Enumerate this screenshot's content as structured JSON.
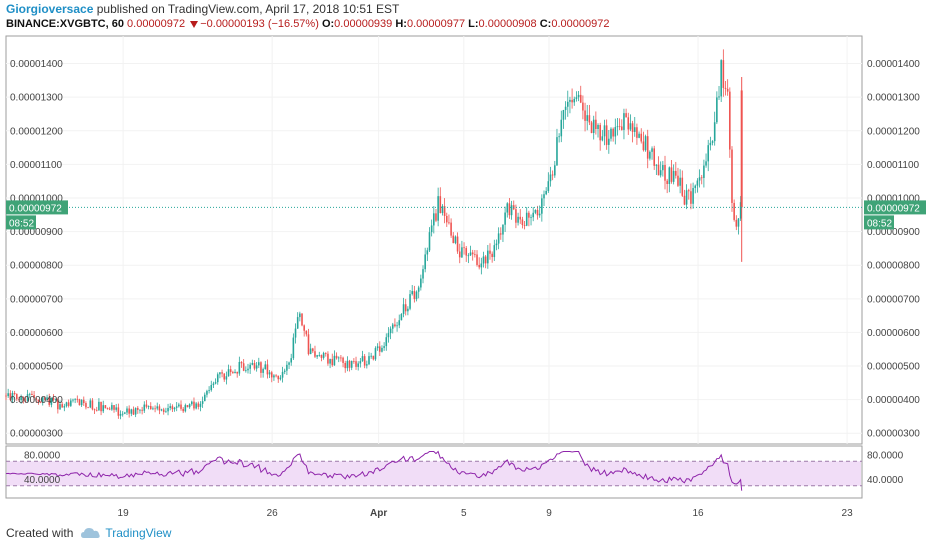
{
  "header": {
    "author": "Giorgioversace",
    "published_text": "published on TradingView.com, April 17, 2018 10:51 EST",
    "symbol": "BINANCE:XVGBTC, 60",
    "last": "0.00000972",
    "change": "−0.00000193 (−16.57%)",
    "o_label": "O:",
    "o_value": "0.00000939",
    "h_label": "H:",
    "h_value": "0.00000977",
    "l_label": "L:",
    "l_value": "0.00000908",
    "c_label": "C:",
    "c_value": "0.00000972"
  },
  "price_badge": {
    "value": "0.00000972",
    "time": "08:52"
  },
  "footer": {
    "created_with": "Created with",
    "brand": "TradingView"
  },
  "colors": {
    "up": "#26a69a",
    "down": "#ef5350",
    "rsi": "#8e24aa",
    "rsi_band": "#f1ddf7",
    "price_line": "#26a69a"
  },
  "chart_data": [
    {
      "type": "candlestick",
      "symbol": "BINANCE:XVGBTC",
      "interval": "60",
      "y_tick_labels": [
        "0.00000300",
        "0.00000400",
        "0.00000500",
        "0.00000600",
        "0.00000700",
        "0.00000800",
        "0.00000900",
        "0.00001000",
        "0.00001100",
        "0.00001200",
        "0.00001300",
        "0.00001400"
      ],
      "y_ticks": [
        3e-06,
        4e-06,
        5e-06,
        6e-06,
        7e-06,
        8e-06,
        9e-06,
        1e-05,
        1.1e-05,
        1.2e-05,
        1.3e-05,
        1.4e-05
      ],
      "ylim": [
        2.68e-06,
        1.482e-05
      ],
      "x_tick_labels": [
        "19",
        "26",
        "Apr",
        "5",
        "9",
        "16",
        "23"
      ],
      "x_ticks": [
        5.5,
        12.5,
        17.5,
        21.5,
        25.5,
        32.5,
        39.5
      ],
      "xlim": [
        0,
        40.2
      ],
      "x_unit": "days since Mar 14, 2018",
      "path": [
        [
          0,
          4.12
        ],
        [
          1.5,
          4.0
        ],
        [
          2.5,
          3.85
        ],
        [
          3.5,
          3.95
        ],
        [
          4.5,
          3.78
        ],
        [
          5.5,
          3.6
        ],
        [
          6.5,
          3.72
        ],
        [
          7.5,
          3.75
        ],
        [
          8.5,
          3.8
        ],
        [
          9.2,
          3.9
        ],
        [
          9.8,
          4.6
        ],
        [
          10.5,
          4.85
        ],
        [
          11.2,
          5.0
        ],
        [
          12.2,
          4.95
        ],
        [
          12.8,
          4.5
        ],
        [
          13.4,
          5.4
        ],
        [
          13.8,
          6.6
        ],
        [
          14.2,
          5.5
        ],
        [
          15,
          5.2
        ],
        [
          16,
          5.1
        ],
        [
          17,
          5.15
        ],
        [
          17.7,
          5.6
        ],
        [
          18.5,
          6.5
        ],
        [
          19.3,
          7.3
        ],
        [
          19.8,
          8.5
        ],
        [
          20.3,
          9.9
        ],
        [
          20.9,
          8.9
        ],
        [
          21.6,
          8.2
        ],
        [
          22.5,
          8.1
        ],
        [
          23.2,
          8.9
        ],
        [
          23.6,
          9.8
        ],
        [
          24.2,
          9.2
        ],
        [
          24.8,
          9.5
        ],
        [
          25.4,
          10.0
        ],
        [
          26.0,
          12.0
        ],
        [
          26.5,
          13.2
        ],
        [
          27.0,
          12.6
        ],
        [
          27.6,
          12.2
        ],
        [
          28.3,
          11.8
        ],
        [
          29.0,
          12.2
        ],
        [
          29.6,
          12.0
        ],
        [
          30.2,
          11.4
        ],
        [
          30.8,
          10.8
        ],
        [
          31.5,
          10.5
        ],
        [
          32.0,
          9.9
        ],
        [
          32.6,
          10.4
        ],
        [
          33.2,
          11.8
        ],
        [
          33.6,
          13.8
        ],
        [
          33.9,
          13.2
        ],
        [
          34.1,
          10.0
        ],
        [
          34.3,
          9.1
        ],
        [
          34.5,
          9.72
        ]
      ],
      "last_price": 9.72e-06
    },
    {
      "type": "line",
      "name": "RSI",
      "y_tick_labels": [
        "40.0000",
        "80.0000"
      ],
      "y_ticks": [
        40,
        80
      ],
      "ylim": [
        10,
        95
      ],
      "band": [
        30,
        70
      ]
    }
  ]
}
